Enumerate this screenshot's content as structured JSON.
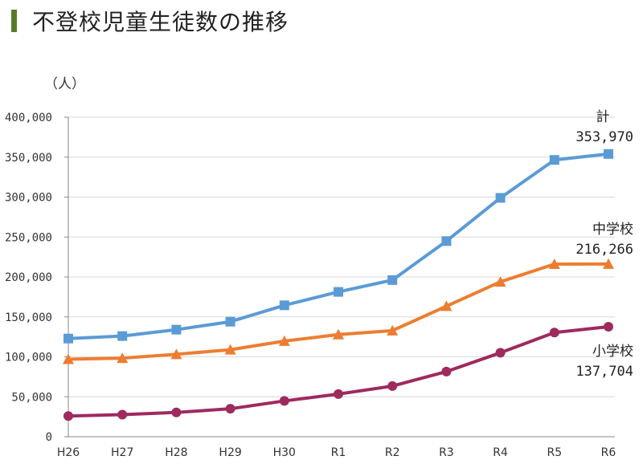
{
  "title": "不登校児童生徒数の推移",
  "colors": {
    "title_bar": "#5a7a2b",
    "total": "#5b9bd5",
    "junior_high": "#ed7d31",
    "elementary": "#9e2a5e",
    "axis": "#888888",
    "grid": "#d9d9d9"
  },
  "chart_data": {
    "type": "line",
    "title": "不登校児童生徒数の推移",
    "ylabel": "（人）",
    "xlabel": "",
    "ylim": [
      0,
      400000
    ],
    "yticks": [
      0,
      50000,
      100000,
      150000,
      200000,
      250000,
      300000,
      350000,
      400000
    ],
    "ytick_labels": [
      "0",
      "50,000",
      "100,000",
      "150,000",
      "200,000",
      "250,000",
      "300,000",
      "350,000",
      "400,000"
    ],
    "grid": "horizontal",
    "categories": [
      "H26",
      "H27",
      "H28",
      "H29",
      "H30",
      "R1",
      "R2",
      "R3",
      "R4",
      "R5",
      "R6"
    ],
    "series": [
      {
        "name": "計",
        "marker": "square",
        "color_key": "total",
        "end_value_label": "353,970",
        "values": [
          122900,
          126000,
          134000,
          144000,
          164500,
          181300,
          196100,
          244900,
          299000,
          346500,
          353970
        ]
      },
      {
        "name": "中学校",
        "marker": "triangle",
        "color_key": "junior_high",
        "end_value_label": "216,266",
        "values": [
          97000,
          98400,
          103200,
          108900,
          119700,
          127900,
          132800,
          163400,
          193900,
          216100,
          216266
        ]
      },
      {
        "name": "小学校",
        "marker": "circle",
        "color_key": "elementary",
        "end_value_label": "137,704",
        "values": [
          25900,
          27600,
          30400,
          35000,
          44800,
          53400,
          63400,
          81500,
          105100,
          130400,
          137704
        ]
      }
    ]
  }
}
